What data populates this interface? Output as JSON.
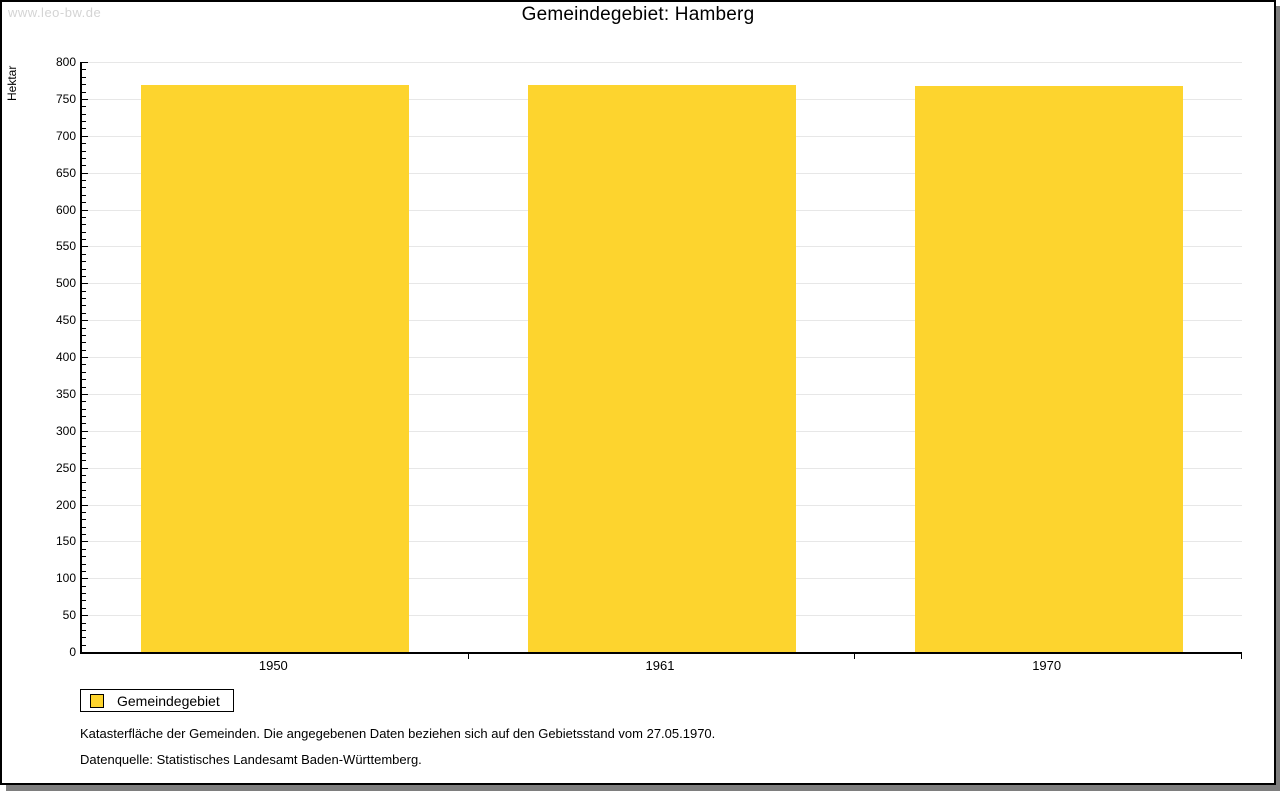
{
  "watermark": "www.leo-bw.de",
  "chart_data": {
    "type": "bar",
    "title": "Gemeindegebiet: Hamberg",
    "ylabel": "Hektar",
    "categories": [
      "1950",
      "1961",
      "1970"
    ],
    "series": [
      {
        "name": "Gemeindegebiet",
        "values": [
          769,
          769,
          767
        ]
      }
    ],
    "ylim": [
      0,
      800
    ],
    "y_major_step": 50,
    "y_minor_step": 10,
    "grid": true,
    "legend_position": "below-plot-left",
    "bar_color": "#fdd42e"
  },
  "legend": {
    "items": [
      {
        "label": "Gemeindegebiet",
        "color": "#fdd42e"
      }
    ]
  },
  "footnotes": [
    "Katasterfläche der Gemeinden. Die angegebenen Daten beziehen sich auf den Gebietsstand vom 27.05.1970.",
    "Datenquelle: Statistisches Landesamt Baden-Württemberg."
  ],
  "colors": {
    "bar": "#fdd42e",
    "grid": "#e7e7e7",
    "axis": "#000000",
    "shadow": "#7e7e7e",
    "watermark": "#d4d4d4"
  }
}
